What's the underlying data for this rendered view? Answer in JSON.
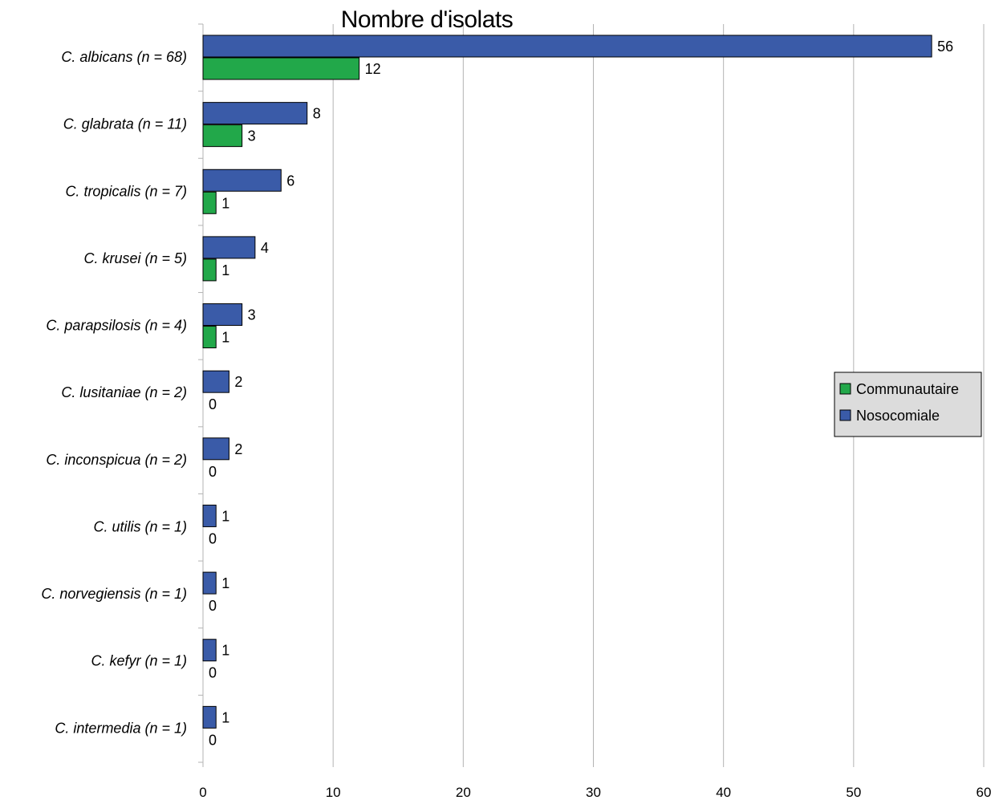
{
  "chart_data": {
    "type": "bar",
    "orientation": "horizontal",
    "title": "Nombre d'isolats",
    "categories": [
      "C. albicans (n = 68)",
      "C. glabrata (n = 11)",
      "C. tropicalis (n = 7)",
      "C. krusei (n = 5)",
      "C. parapsilosis (n = 4)",
      "C. lusitaniae (n = 2)",
      "C. inconspicua (n = 2)",
      "C. utilis (n = 1)",
      "C. norvegiensis (n = 1)",
      "C. kefyr (n = 1)",
      "C. intermedia (n = 1)"
    ],
    "series": [
      {
        "name": "Nosocomiale",
        "color": "#3a5ba8",
        "values": [
          56,
          8,
          6,
          4,
          3,
          2,
          2,
          1,
          1,
          1,
          1
        ]
      },
      {
        "name": "Communautaire",
        "color": "#22a84a",
        "values": [
          12,
          3,
          1,
          1,
          1,
          0,
          0,
          0,
          0,
          0,
          0
        ]
      }
    ],
    "xlim": [
      0,
      60
    ],
    "xticks": [
      0,
      10,
      20,
      30,
      40,
      50,
      60
    ],
    "grid": true,
    "legend": {
      "placement": "right",
      "entries": [
        "Communautaire",
        "Nosocomiale"
      ]
    },
    "data_labels": true
  }
}
